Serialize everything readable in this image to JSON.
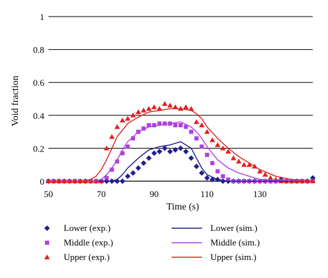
{
  "chart_data": {
    "type": "scatter",
    "xlabel": "Time (s)",
    "ylabel": "Void fraction",
    "xlim": [
      50,
      150
    ],
    "ylim": [
      0,
      1
    ],
    "x_ticks": [
      50,
      70,
      90,
      110,
      130
    ],
    "y_ticks": [
      0,
      0.2,
      0.4,
      0.6,
      0.8,
      1
    ],
    "y_tick_labels": [
      "0",
      "0.2",
      "0.4",
      "0.6",
      "0.8",
      "1"
    ],
    "grid": "horizontal",
    "legend_position": "bottom",
    "series": [
      {
        "name": "Lower (exp.)",
        "kind": "points",
        "marker": "diamond",
        "color": "#1f1f8f",
        "x": [
          50,
          52,
          54,
          56,
          58,
          60,
          62,
          64,
          66,
          68,
          70,
          72,
          74,
          76,
          78,
          80,
          82,
          84,
          86,
          88,
          90,
          92,
          94,
          96,
          98,
          100,
          102,
          104,
          106,
          108,
          110,
          112,
          114,
          116,
          118,
          120,
          122,
          124,
          126,
          128,
          130,
          132,
          134,
          136,
          138,
          140,
          142,
          144,
          146,
          148,
          150
        ],
        "y": [
          0,
          0,
          0,
          0,
          0,
          0,
          0,
          0,
          0,
          0,
          0,
          0,
          0,
          0,
          0,
          0.03,
          0.05,
          0.08,
          0.11,
          0.14,
          0.17,
          0.18,
          0.2,
          0.18,
          0.19,
          0.2,
          0.18,
          0.14,
          0.09,
          0.05,
          0.02,
          0.01,
          0.01,
          0,
          0,
          0,
          0,
          0,
          0,
          0,
          0,
          0,
          0,
          0,
          0.01,
          0,
          0,
          0,
          0,
          0,
          0.02
        ]
      },
      {
        "name": "Middle (exp.)",
        "kind": "points",
        "marker": "square",
        "color": "#b040e0",
        "x": [
          50,
          52,
          54,
          56,
          58,
          60,
          62,
          64,
          66,
          68,
          70,
          72,
          74,
          76,
          78,
          80,
          82,
          84,
          86,
          88,
          90,
          92,
          94,
          96,
          98,
          100,
          102,
          104,
          106,
          108,
          110,
          112,
          114,
          116,
          118,
          120,
          122,
          124,
          126,
          128,
          130,
          132,
          134,
          136,
          138,
          140,
          142,
          144,
          146,
          148,
          150
        ],
        "y": [
          0,
          0,
          0,
          0,
          0,
          0,
          0,
          0,
          0,
          0,
          0,
          0.02,
          0.07,
          0.12,
          0.17,
          0.21,
          0.26,
          0.3,
          0.32,
          0.34,
          0.34,
          0.35,
          0.35,
          0.35,
          0.34,
          0.34,
          0.33,
          0.3,
          0.26,
          0.21,
          0.16,
          0.11,
          0.06,
          0.03,
          0.01,
          0,
          0,
          0,
          0,
          0,
          0,
          0,
          0,
          0,
          0,
          0,
          0,
          0,
          0,
          0,
          0
        ]
      },
      {
        "name": "Upper (exp.)",
        "kind": "points",
        "marker": "triangle",
        "color": "#e02020",
        "x": [
          50,
          52,
          54,
          56,
          58,
          60,
          62,
          64,
          66,
          68,
          70,
          72,
          74,
          76,
          78,
          80,
          82,
          84,
          86,
          88,
          90,
          92,
          94,
          96,
          98,
          100,
          102,
          104,
          106,
          108,
          110,
          112,
          114,
          116,
          118,
          120,
          122,
          124,
          126,
          128,
          130,
          132,
          134,
          136,
          138,
          140,
          142,
          144,
          146,
          148,
          150
        ],
        "y": [
          0,
          0,
          0,
          0,
          0,
          0,
          0,
          0,
          0,
          0,
          0,
          0.2,
          0.27,
          0.33,
          0.37,
          0.38,
          0.4,
          0.42,
          0.43,
          0.44,
          0.45,
          0.44,
          0.47,
          0.46,
          0.45,
          0.44,
          0.45,
          0.44,
          0.36,
          0.34,
          0.3,
          0.25,
          0.22,
          0.2,
          0.18,
          0.14,
          0.12,
          0.1,
          0.1,
          0.09,
          0.06,
          0.04,
          0.02,
          0.01,
          0,
          0,
          0,
          0,
          0,
          0,
          0
        ]
      },
      {
        "name": "Lower (sim.)",
        "kind": "line",
        "color": "#1f1f8f",
        "x": [
          50,
          70,
          74,
          76,
          78,
          80,
          84,
          88,
          92,
          96,
          100,
          104,
          106,
          108,
          110,
          114,
          118,
          120,
          150
        ],
        "y": [
          0,
          0,
          0,
          0.01,
          0.04,
          0.08,
          0.14,
          0.19,
          0.21,
          0.22,
          0.24,
          0.2,
          0.14,
          0.08,
          0.04,
          0.01,
          0,
          0,
          0
        ]
      },
      {
        "name": "Middle (sim.)",
        "kind": "line",
        "color": "#b040e0",
        "x": [
          50,
          68,
          70,
          72,
          74,
          76,
          78,
          80,
          84,
          88,
          92,
          96,
          100,
          104,
          106,
          108,
          110,
          112,
          114,
          118,
          122,
          126,
          130,
          150
        ],
        "y": [
          0,
          0,
          0.01,
          0.04,
          0.08,
          0.13,
          0.19,
          0.24,
          0.3,
          0.33,
          0.34,
          0.35,
          0.36,
          0.33,
          0.3,
          0.26,
          0.21,
          0.17,
          0.13,
          0.08,
          0.05,
          0.03,
          0.01,
          0
        ]
      },
      {
        "name": "Upper (sim.)",
        "kind": "line",
        "color": "#e02020",
        "x": [
          50,
          64,
          66,
          68,
          70,
          72,
          74,
          76,
          78,
          80,
          84,
          88,
          92,
          96,
          100,
          104,
          106,
          108,
          110,
          114,
          118,
          122,
          126,
          130,
          136,
          142,
          150
        ],
        "y": [
          0,
          0,
          0.01,
          0.03,
          0.07,
          0.13,
          0.2,
          0.27,
          0.31,
          0.35,
          0.39,
          0.42,
          0.43,
          0.44,
          0.44,
          0.43,
          0.41,
          0.38,
          0.33,
          0.26,
          0.2,
          0.15,
          0.11,
          0.07,
          0.03,
          0.01,
          0
        ]
      }
    ]
  }
}
